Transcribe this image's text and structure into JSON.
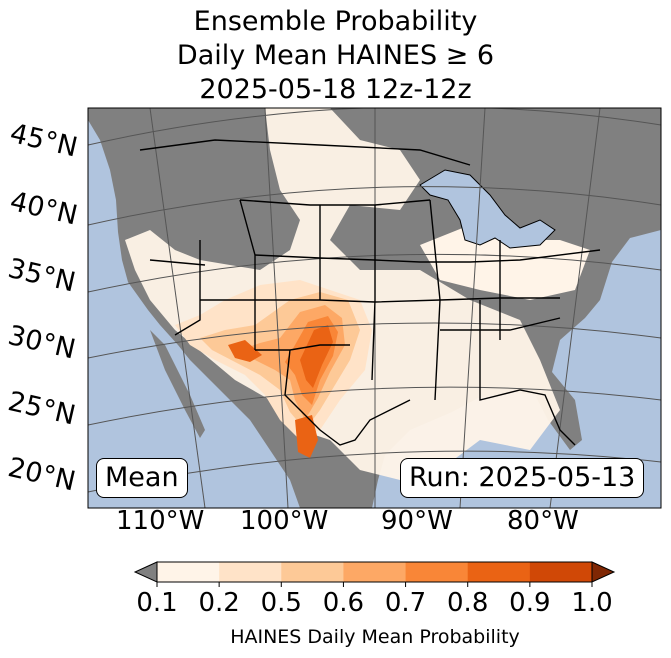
{
  "title": {
    "line1": "Ensemble Probability",
    "line2": "Daily Mean HAINES ≥ 6",
    "line3": "2025-05-18 12z-12z"
  },
  "panel_left_label": "Mean",
  "panel_right_label": "Run: 2025-05-13",
  "latitude_labels": [
    "45°N",
    "40°N",
    "35°N",
    "30°N",
    "25°N",
    "20°N"
  ],
  "longitude_labels": [
    "110°W",
    "100°W",
    "90°W",
    "80°W"
  ],
  "colorbar": {
    "title": "HAINES Daily Mean Probability",
    "ticks": [
      "0.1",
      "0.2",
      "0.5",
      "0.6",
      "0.7",
      "0.8",
      "0.9",
      "1.0"
    ],
    "colors": [
      "#fff4e8",
      "#ffe3c8",
      "#fdc997",
      "#fda865",
      "#f98637",
      "#ea6314",
      "#d04806"
    ],
    "under_color": "#808080",
    "over_color": "#7f2704"
  },
  "colors": {
    "ocean": "#b0c4de",
    "land_low": "#808080",
    "borders": "#000000",
    "graticule": "#555555"
  }
}
